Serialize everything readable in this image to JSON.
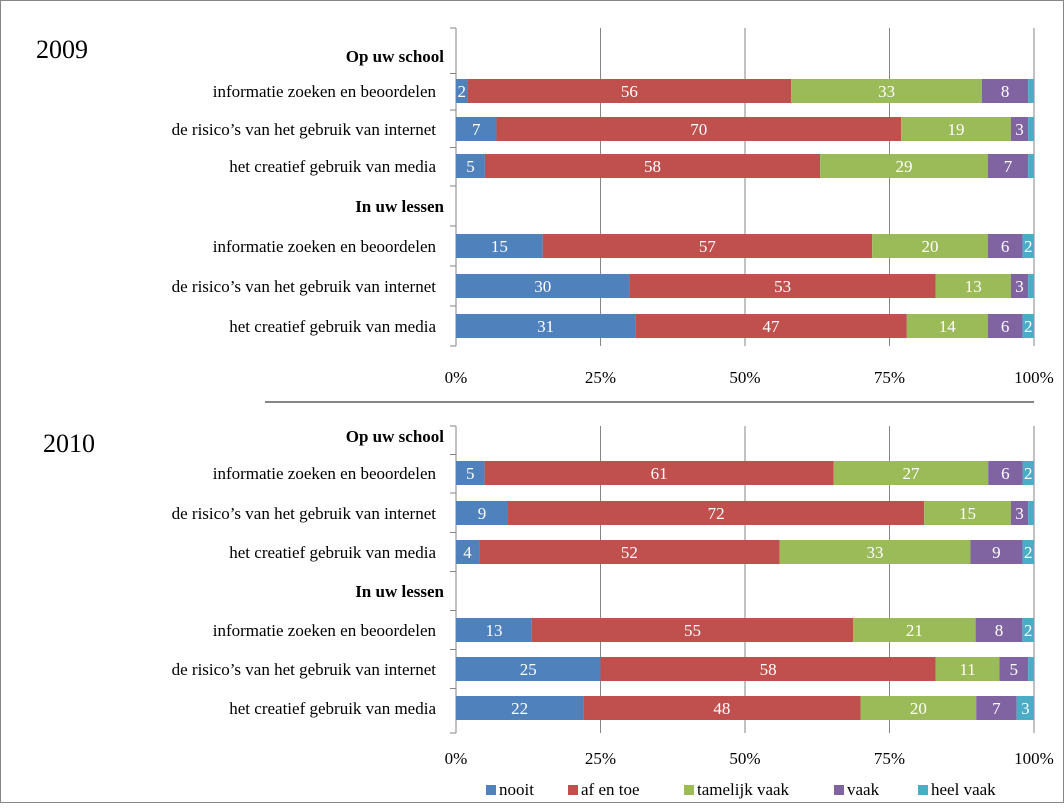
{
  "legend": [
    {
      "name": "nooit",
      "color": "#4f81bd"
    },
    {
      "name": "af en toe",
      "color": "#c0504d"
    },
    {
      "name": "tamelijk vaak",
      "color": "#9bbb59"
    },
    {
      "name": "vaak",
      "color": "#8064a2"
    },
    {
      "name": "heel vaak",
      "color": "#4bacc6"
    }
  ],
  "chart_data": [
    {
      "type": "bar",
      "orientation": "horizontal",
      "stacked": true,
      "normalized": true,
      "title": "2009",
      "grid": true,
      "xlim": [
        0,
        100
      ],
      "x_ticks": [
        "0%",
        "25%",
        "50%",
        "75%",
        "100%"
      ],
      "series_names": [
        "nooit",
        "af en toe",
        "tamelijk vaak",
        "vaak",
        "heel vaak"
      ],
      "groups": [
        {
          "header": "Op uw school",
          "rows": [
            {
              "label": "informatie zoeken en beoordelen",
              "values": [
                2,
                56,
                33,
                8,
                1
              ],
              "labels": [
                "2",
                "56",
                "33",
                "8",
                ""
              ]
            },
            {
              "label": "de risico’s van het gebruik van internet",
              "values": [
                7,
                70,
                19,
                3,
                1
              ],
              "labels": [
                "7",
                "70",
                "19",
                "3",
                ""
              ]
            },
            {
              "label": "het creatief gebruik van media",
              "values": [
                5,
                58,
                29,
                7,
                1
              ],
              "labels": [
                "5",
                "58",
                "29",
                "7",
                ""
              ]
            }
          ]
        },
        {
          "header": "In uw lessen",
          "rows": [
            {
              "label": "informatie zoeken en beoordelen",
              "values": [
                15,
                57,
                20,
                6,
                2
              ],
              "labels": [
                "15",
                "57",
                "20",
                "6",
                "2"
              ]
            },
            {
              "label": "de risico’s van het gebruik van internet",
              "values": [
                30,
                53,
                13,
                3,
                1
              ],
              "labels": [
                "30",
                "53",
                "13",
                "3",
                ""
              ]
            },
            {
              "label": "het creatief gebruik van media",
              "values": [
                31,
                47,
                14,
                6,
                2
              ],
              "labels": [
                "31",
                "47",
                "14",
                "6",
                "2"
              ]
            }
          ]
        }
      ]
    },
    {
      "type": "bar",
      "orientation": "horizontal",
      "stacked": true,
      "normalized": true,
      "title": "2010",
      "grid": true,
      "xlim": [
        0,
        100
      ],
      "x_ticks": [
        "0%",
        "25%",
        "50%",
        "75%",
        "100%"
      ],
      "series_names": [
        "nooit",
        "af en toe",
        "tamelijk vaak",
        "vaak",
        "heel vaak"
      ],
      "groups": [
        {
          "header": "Op uw school",
          "rows": [
            {
              "label": "informatie zoeken en beoordelen",
              "values": [
                5,
                61,
                27,
                6,
                2
              ],
              "labels": [
                "5",
                "61",
                "27",
                "6",
                "2"
              ]
            },
            {
              "label": "de risico’s van het gebruik van internet",
              "values": [
                9,
                72,
                15,
                3,
                1
              ],
              "labels": [
                "9",
                "72",
                "15",
                "3",
                ""
              ]
            },
            {
              "label": "het creatief gebruik van media",
              "values": [
                4,
                52,
                33,
                9,
                2
              ],
              "labels": [
                "4",
                "52",
                "33",
                "9",
                "2"
              ]
            }
          ]
        },
        {
          "header": "In uw lessen",
          "rows": [
            {
              "label": "informatie zoeken en beoordelen",
              "values": [
                13,
                55,
                21,
                8,
                2
              ],
              "labels": [
                "13",
                "55",
                "21",
                "8",
                "2"
              ]
            },
            {
              "label": "de risico’s van het gebruik van internet",
              "values": [
                25,
                58,
                11,
                5,
                1
              ],
              "labels": [
                "25",
                "58",
                "11",
                "5",
                ""
              ]
            },
            {
              "label": "het creatief gebruik van media",
              "values": [
                22,
                48,
                20,
                7,
                3
              ],
              "labels": [
                "22",
                "48",
                "20",
                "7",
                "3"
              ]
            }
          ]
        }
      ]
    }
  ]
}
